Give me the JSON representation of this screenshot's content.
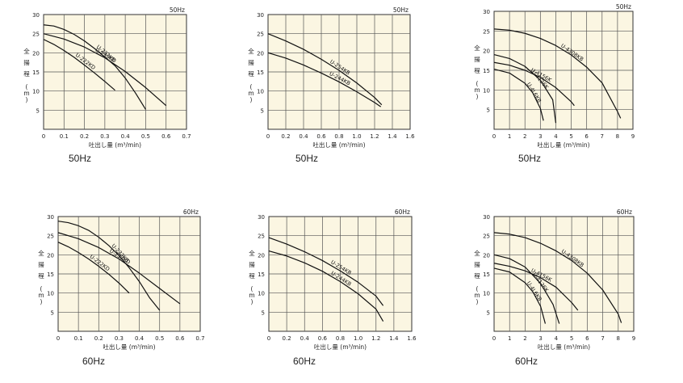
{
  "chart_data": [
    {
      "type": "line",
      "title": "50Hz",
      "caption": "50Hz",
      "ylabel": "全揚程 (m)",
      "xlabel": "吐出し量 (m³/min)",
      "xlim": [
        0,
        0.7
      ],
      "ylim": [
        0,
        30
      ],
      "xticks": [
        "0",
        "0.1",
        "0.2",
        "0.3",
        "0.4",
        "0.5",
        "0.6",
        "0.7"
      ],
      "yticks": [
        "5",
        "10",
        "15",
        "20",
        "25",
        "30"
      ],
      "background": "#fbf6e2",
      "grid": true,
      "series": [
        {
          "name": "U-232KB",
          "x": [
            0,
            0.05,
            0.1,
            0.15,
            0.2,
            0.25,
            0.3,
            0.35,
            0.4,
            0.45,
            0.5
          ],
          "y": [
            27.3,
            27,
            26.1,
            24.8,
            23.1,
            21.1,
            18.9,
            16.6,
            13.4,
            9.5,
            5.2
          ]
        },
        {
          "name": "U-222KD",
          "x": [
            0,
            0.05,
            0.1,
            0.15,
            0.2,
            0.25,
            0.3,
            0.35
          ],
          "y": [
            23.5,
            22.2,
            20.6,
            18.8,
            16.8,
            14.7,
            12.5,
            10.2
          ]
        },
        {
          "name": "U-233KD",
          "x": [
            0,
            0.1,
            0.2,
            0.3,
            0.4,
            0.5,
            0.6
          ],
          "y": [
            25,
            23.6,
            21.5,
            18.7,
            15.1,
            10.9,
            6.2
          ]
        }
      ]
    },
    {
      "type": "line",
      "title": "50Hz",
      "caption": "50Hz",
      "ylabel": "全揚程 (m)",
      "xlabel": "吐出し量 (m³/min)",
      "xlim": [
        0,
        1.6
      ],
      "ylim": [
        0,
        30
      ],
      "xticks": [
        "0",
        "0.2",
        "0.4",
        "0.6",
        "0.8",
        "1.0",
        "1.2",
        "1.4",
        "1.6"
      ],
      "yticks": [
        "5",
        "10",
        "15",
        "20",
        "25",
        "30"
      ],
      "background": "#fbf6e2",
      "grid": true,
      "series": [
        {
          "name": "U-254KB",
          "x": [
            0,
            0.2,
            0.4,
            0.6,
            0.8,
            1.0,
            1.2,
            1.28
          ],
          "y": [
            25,
            23.1,
            20.9,
            18.3,
            15.4,
            12.1,
            8.3,
            6.4
          ]
        },
        {
          "name": "U-244KB",
          "x": [
            0,
            0.2,
            0.4,
            0.6,
            0.8,
            1.0,
            1.2,
            1.27
          ],
          "y": [
            20,
            18.6,
            16.8,
            14.7,
            12.4,
            9.8,
            7,
            5.9
          ]
        }
      ]
    },
    {
      "type": "line",
      "title": "50Hz",
      "caption": "50Hz",
      "ylabel": "全揚程 (m)",
      "xlabel": "吐出し量 (m³/min)",
      "xlim": [
        0,
        9
      ],
      "ylim": [
        0,
        30
      ],
      "xticks": [
        "0",
        "1",
        "2",
        "3",
        "4",
        "5",
        "6",
        "7",
        "8",
        "9"
      ],
      "yticks": [
        "5",
        "10",
        "15",
        "20",
        "25",
        "30"
      ],
      "background": "#fbf6e2",
      "grid": true,
      "series": [
        {
          "name": "U-4308KB",
          "x": [
            0,
            1,
            2,
            3,
            4,
            5,
            6,
            7,
            8,
            8.2
          ],
          "y": [
            25.5,
            25.2,
            24.4,
            23.1,
            21.3,
            18.9,
            15.8,
            11.8,
            4.5,
            2.8
          ]
        },
        {
          "name": "U-4156K",
          "x": [
            0,
            1,
            2,
            3,
            4,
            5,
            5.2
          ],
          "y": [
            17,
            16.3,
            15,
            13.2,
            10.6,
            7,
            6
          ]
        },
        {
          "name": "U-4126K",
          "x": [
            0,
            1,
            2,
            3,
            3.8,
            4
          ],
          "y": [
            19,
            18,
            16,
            12.5,
            7.5,
            1.6
          ]
        },
        {
          "name": "U-4L6KB",
          "x": [
            0,
            1,
            2,
            2.5,
            3,
            3.2
          ],
          "y": [
            15.3,
            14.3,
            11.7,
            9.3,
            5.3,
            2.2
          ]
        }
      ]
    },
    {
      "type": "line",
      "title": "60Hz",
      "caption": "60Hz",
      "ylabel": "全揚程 (m)",
      "xlabel": "吐出し量 (m³/min)",
      "xlim": [
        0,
        0.7
      ],
      "ylim": [
        0,
        30
      ],
      "xticks": [
        "0",
        "0.1",
        "0.2",
        "0.3",
        "0.4",
        "0.5",
        "0.6",
        "0.7"
      ],
      "yticks": [
        "5",
        "10",
        "15",
        "20",
        "25",
        "30"
      ],
      "background": "#fbf6e2",
      "grid": true,
      "series": [
        {
          "name": "U-232KB",
          "x": [
            0,
            0.05,
            0.1,
            0.15,
            0.2,
            0.25,
            0.3,
            0.35,
            0.4,
            0.45,
            0.5
          ],
          "y": [
            28.8,
            28.4,
            27.6,
            26.4,
            24.6,
            22.4,
            19.8,
            16.6,
            13,
            8.8,
            5.5
          ]
        },
        {
          "name": "U-222KD",
          "x": [
            0,
            0.05,
            0.1,
            0.15,
            0.2,
            0.25,
            0.3,
            0.35
          ],
          "y": [
            23.3,
            22.1,
            20.6,
            18.9,
            17,
            14.9,
            12.6,
            10
          ]
        },
        {
          "name": "U-233KD",
          "x": [
            0,
            0.1,
            0.2,
            0.3,
            0.4,
            0.5,
            0.6
          ],
          "y": [
            25.8,
            24.2,
            21.9,
            18.9,
            15.2,
            11.2,
            7.2
          ]
        }
      ]
    },
    {
      "type": "line",
      "title": "60Hz",
      "caption": "60Hz",
      "ylabel": "全揚程 (m)",
      "xlabel": "吐出し量 (m³/min)",
      "xlim": [
        0,
        1.6
      ],
      "ylim": [
        0,
        30
      ],
      "xticks": [
        "0",
        "0.2",
        "0.4",
        "0.6",
        "0.8",
        "1.0",
        "1.2",
        "1.4",
        "1.6"
      ],
      "yticks": [
        "5",
        "10",
        "15",
        "20",
        "25",
        "30"
      ],
      "background": "#fbf6e2",
      "grid": true,
      "series": [
        {
          "name": "U-254KB",
          "x": [
            0,
            0.2,
            0.4,
            0.6,
            0.8,
            1.0,
            1.2,
            1.28
          ],
          "y": [
            24.5,
            22.8,
            20.8,
            18.5,
            15.8,
            12.8,
            9.2,
            6.7
          ]
        },
        {
          "name": "U-244KB",
          "x": [
            0,
            0.2,
            0.4,
            0.6,
            0.8,
            1.0,
            1.2,
            1.28
          ],
          "y": [
            21,
            19.7,
            17.9,
            15.7,
            13,
            9.8,
            5.8,
            2.6
          ]
        }
      ]
    },
    {
      "type": "line",
      "title": "60Hz",
      "caption": "60Hz",
      "ylabel": "全揚程 (m)",
      "xlabel": "吐出し量 (m³/min)",
      "xlim": [
        0,
        9
      ],
      "ylim": [
        0,
        30
      ],
      "xticks": [
        "0",
        "1",
        "2",
        "3",
        "4",
        "5",
        "6",
        "7",
        "8",
        "9"
      ],
      "yticks": [
        "5",
        "10",
        "15",
        "20",
        "25",
        "30"
      ],
      "background": "#fbf6e2",
      "grid": true,
      "series": [
        {
          "name": "U-4308KB",
          "x": [
            0,
            1,
            2,
            3,
            4,
            5,
            6,
            7,
            8,
            8.2
          ],
          "y": [
            25.8,
            25.4,
            24.5,
            23,
            21,
            18.5,
            15.2,
            10.8,
            4.5,
            2.2
          ]
        },
        {
          "name": "U-4156K",
          "x": [
            0,
            1,
            2,
            3,
            4,
            5,
            5.4
          ],
          "y": [
            17.8,
            17,
            15.8,
            14,
            11.5,
            7.5,
            5.5
          ]
        },
        {
          "name": "U-4126K",
          "x": [
            0,
            1,
            2,
            3,
            3.8,
            4.2
          ],
          "y": [
            20,
            19,
            16.8,
            12.5,
            7,
            2
          ]
        },
        {
          "name": "U-4L6KB",
          "x": [
            0,
            1,
            2,
            2.5,
            3,
            3.3
          ],
          "y": [
            16.5,
            15.5,
            12.7,
            10.3,
            6.5,
            2
          ]
        }
      ]
    }
  ]
}
